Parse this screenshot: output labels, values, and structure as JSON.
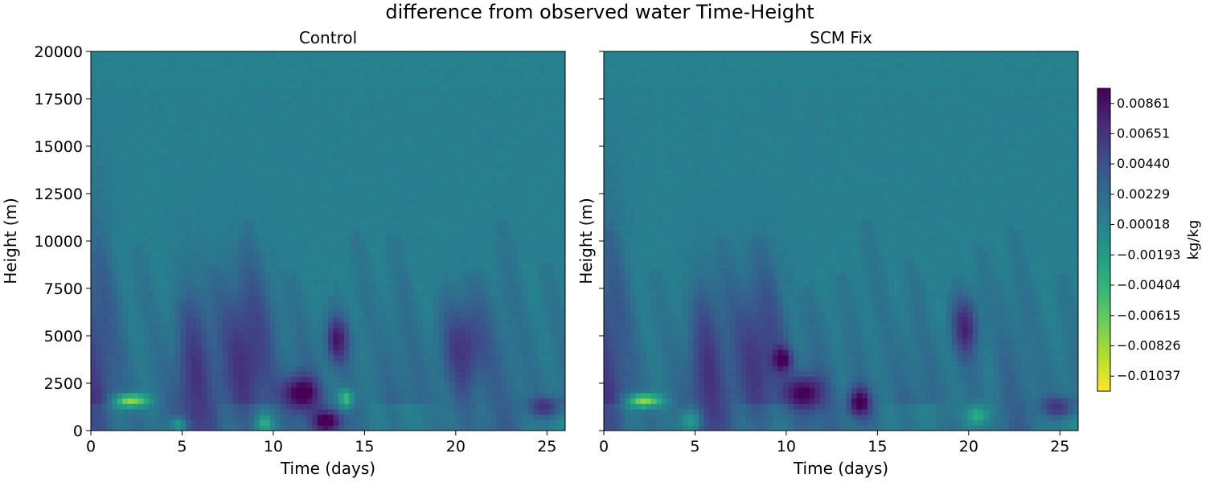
{
  "colors": {
    "palette": [
      "#fde725",
      "#b5de2b",
      "#6ece58",
      "#35b779",
      "#1f9e89",
      "#26828e",
      "#31688e",
      "#3e4989",
      "#482878",
      "#440154"
    ],
    "background": "#21918c"
  },
  "chart_data": {
    "type": "heatmap",
    "suptitle": "difference from observed water Time-Height",
    "panels": [
      {
        "title": "Control",
        "xlabel": "Time (days)",
        "ylabel": "Height (m)",
        "xlim": [
          0,
          26
        ],
        "ylim": [
          0,
          20000
        ],
        "xticks": [
          "0",
          "5",
          "10",
          "15",
          "20",
          "25"
        ],
        "yticks": [
          "0",
          "2500",
          "5000",
          "7500",
          "10000",
          "12500",
          "15000",
          "17500",
          "20000"
        ],
        "features": [
          {
            "t": 0.0,
            "z": 2000,
            "dt": 1.2,
            "dz": 9000,
            "v": 0.0035
          },
          {
            "t": 5.5,
            "z": 3000,
            "dt": 1.0,
            "dz": 5000,
            "v": 0.004
          },
          {
            "t": 8.5,
            "z": 4000,
            "dt": 1.5,
            "dz": 4500,
            "v": 0.005
          },
          {
            "t": 11.5,
            "z": 2000,
            "dt": 1.0,
            "dz": 900,
            "v": 0.0085
          },
          {
            "t": 13.5,
            "z": 4800,
            "dt": 0.6,
            "dz": 1200,
            "v": 0.007
          },
          {
            "t": 13.0,
            "z": 500,
            "dt": 0.8,
            "dz": 600,
            "v": 0.0086
          },
          {
            "t": 20.5,
            "z": 4500,
            "dt": 1.2,
            "dz": 2500,
            "v": 0.005
          },
          {
            "t": 2.2,
            "z": 1600,
            "dt": 0.9,
            "dz": 350,
            "v": -0.0104
          },
          {
            "t": 14.0,
            "z": 1700,
            "dt": 0.4,
            "dz": 500,
            "v": -0.007
          },
          {
            "t": 4.8,
            "z": 300,
            "dt": 0.5,
            "dz": 400,
            "v": -0.006
          },
          {
            "t": 9.5,
            "z": 400,
            "dt": 0.5,
            "dz": 500,
            "v": -0.005
          },
          {
            "t": 25.0,
            "z": 1200,
            "dt": 1.0,
            "dz": 500,
            "v": 0.006
          }
        ]
      },
      {
        "title": "SCM Fix",
        "xlabel": "Time (days)",
        "ylabel": "Height (m)",
        "xlim": [
          0,
          26
        ],
        "ylim": [
          0,
          20000
        ],
        "xticks": [
          "0",
          "5",
          "10",
          "15",
          "20",
          "25"
        ],
        "yticks": [],
        "features": [
          {
            "t": 0.0,
            "z": 2000,
            "dt": 1.2,
            "dz": 9000,
            "v": 0.0035
          },
          {
            "t": 5.5,
            "z": 3000,
            "dt": 1.0,
            "dz": 5000,
            "v": 0.004
          },
          {
            "t": 8.5,
            "z": 4000,
            "dt": 1.5,
            "dz": 4500,
            "v": 0.0045
          },
          {
            "t": 11.0,
            "z": 2000,
            "dt": 1.0,
            "dz": 900,
            "v": 0.008
          },
          {
            "t": 14.0,
            "z": 1500,
            "dt": 0.6,
            "dz": 800,
            "v": 0.0086
          },
          {
            "t": 9.8,
            "z": 3800,
            "dt": 0.5,
            "dz": 600,
            "v": 0.007
          },
          {
            "t": 19.8,
            "z": 5500,
            "dt": 0.7,
            "dz": 1500,
            "v": 0.006
          },
          {
            "t": 2.2,
            "z": 1600,
            "dt": 0.9,
            "dz": 350,
            "v": -0.0104
          },
          {
            "t": 4.8,
            "z": 500,
            "dt": 0.6,
            "dz": 700,
            "v": -0.006
          },
          {
            "t": 20.5,
            "z": 800,
            "dt": 0.6,
            "dz": 600,
            "v": -0.006
          },
          {
            "t": 25.0,
            "z": 1200,
            "dt": 1.0,
            "dz": 500,
            "v": 0.006
          }
        ]
      }
    ],
    "colorbar": {
      "label": "kg/kg",
      "vmin": -0.01142,
      "vmax": 0.00966,
      "ticks": [
        {
          "value": 0.00861,
          "label": "0.00861"
        },
        {
          "value": 0.00651,
          "label": "0.00651"
        },
        {
          "value": 0.0044,
          "label": "0.00440"
        },
        {
          "value": 0.00229,
          "label": "0.00229"
        },
        {
          "value": 0.00018,
          "label": "0.00018"
        },
        {
          "value": -0.00193,
          "label": "−0.00193"
        },
        {
          "value": -0.00404,
          "label": "−0.00404"
        },
        {
          "value": -0.00615,
          "label": "−0.00615"
        },
        {
          "value": -0.00826,
          "label": "−0.00826"
        },
        {
          "value": -0.01037,
          "label": "−0.01037"
        }
      ]
    }
  }
}
